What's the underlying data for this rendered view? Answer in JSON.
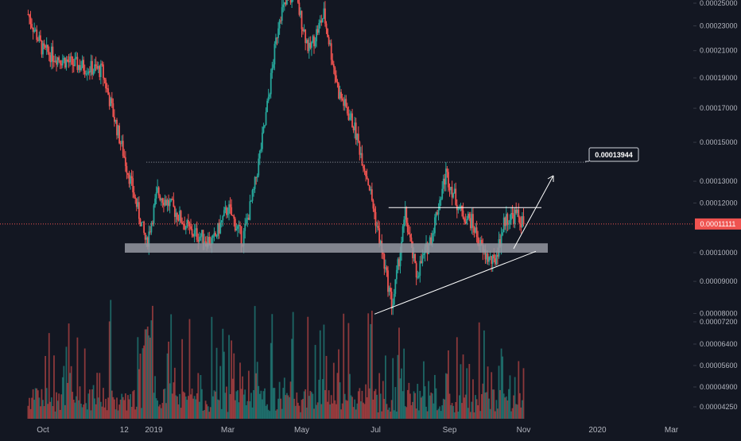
{
  "chart_data": {
    "type": "candlestick",
    "title": "",
    "xlabel": "",
    "ylabel": "",
    "grid": false,
    "x_tick_labels": [
      "Oct",
      "12",
      "2019",
      "Mar",
      "May",
      "Jul",
      "Sep",
      "Nov",
      "2020",
      "Mar"
    ],
    "y_ticks": [
      "0.00025000",
      "0.00023000",
      "0.00021000",
      "0.00019000",
      "0.00017000",
      "0.00015000",
      "0.00013000",
      "0.00012000",
      "0.00010000",
      "0.00009000",
      "0.00008000",
      "0.00007200",
      "0.00006400",
      "0.00005600",
      "0.00004900",
      "0.00004250"
    ],
    "price_scale": "log",
    "current_price": "0.00011111",
    "annotations": {
      "target_label": "0.00013944",
      "target_value": 0.00013944,
      "resistance_level": 0.000118,
      "support_zone": [
        0.0001,
        0.0001035
      ],
      "rising_support": {
        "from": [
          "Jul",
          7.98e-05
        ],
        "to": [
          "Nov",
          0.0001005
        ]
      }
    },
    "colors": {
      "background": "#131722",
      "up": "#26a69a",
      "down": "#ef5350",
      "text": "#b2b5be",
      "current_price_line": "#ef5350",
      "annotation": "#ffffff",
      "support_zone": "#9598a1"
    },
    "price_path_monthly": [
      {
        "month": "Oct 2018",
        "price_approx": 0.00021
      },
      {
        "month": "Nov 2018",
        "price_approx": 0.00016
      },
      {
        "month": "Dec 2018",
        "price_approx": 0.000115
      },
      {
        "month": "Jan 2019",
        "price_approx": 0.00012
      },
      {
        "month": "Feb 2019",
        "price_approx": 0.000105
      },
      {
        "month": "Mar 2019",
        "price_approx": 0.000115
      },
      {
        "month": "Apr 2019",
        "price_approx": 0.00023
      },
      {
        "month": "May 2019",
        "price_approx": 0.00021
      },
      {
        "month": "Jun 2019",
        "price_approx": 0.00013
      },
      {
        "month": "Jul 2019",
        "price_approx": 9.5e-05
      },
      {
        "month": "Aug 2019",
        "price_approx": 0.000125
      },
      {
        "month": "Sep 2019",
        "price_approx": 0.0001
      },
      {
        "month": "Oct 2019",
        "price_approx": 0.00011111
      }
    ]
  }
}
